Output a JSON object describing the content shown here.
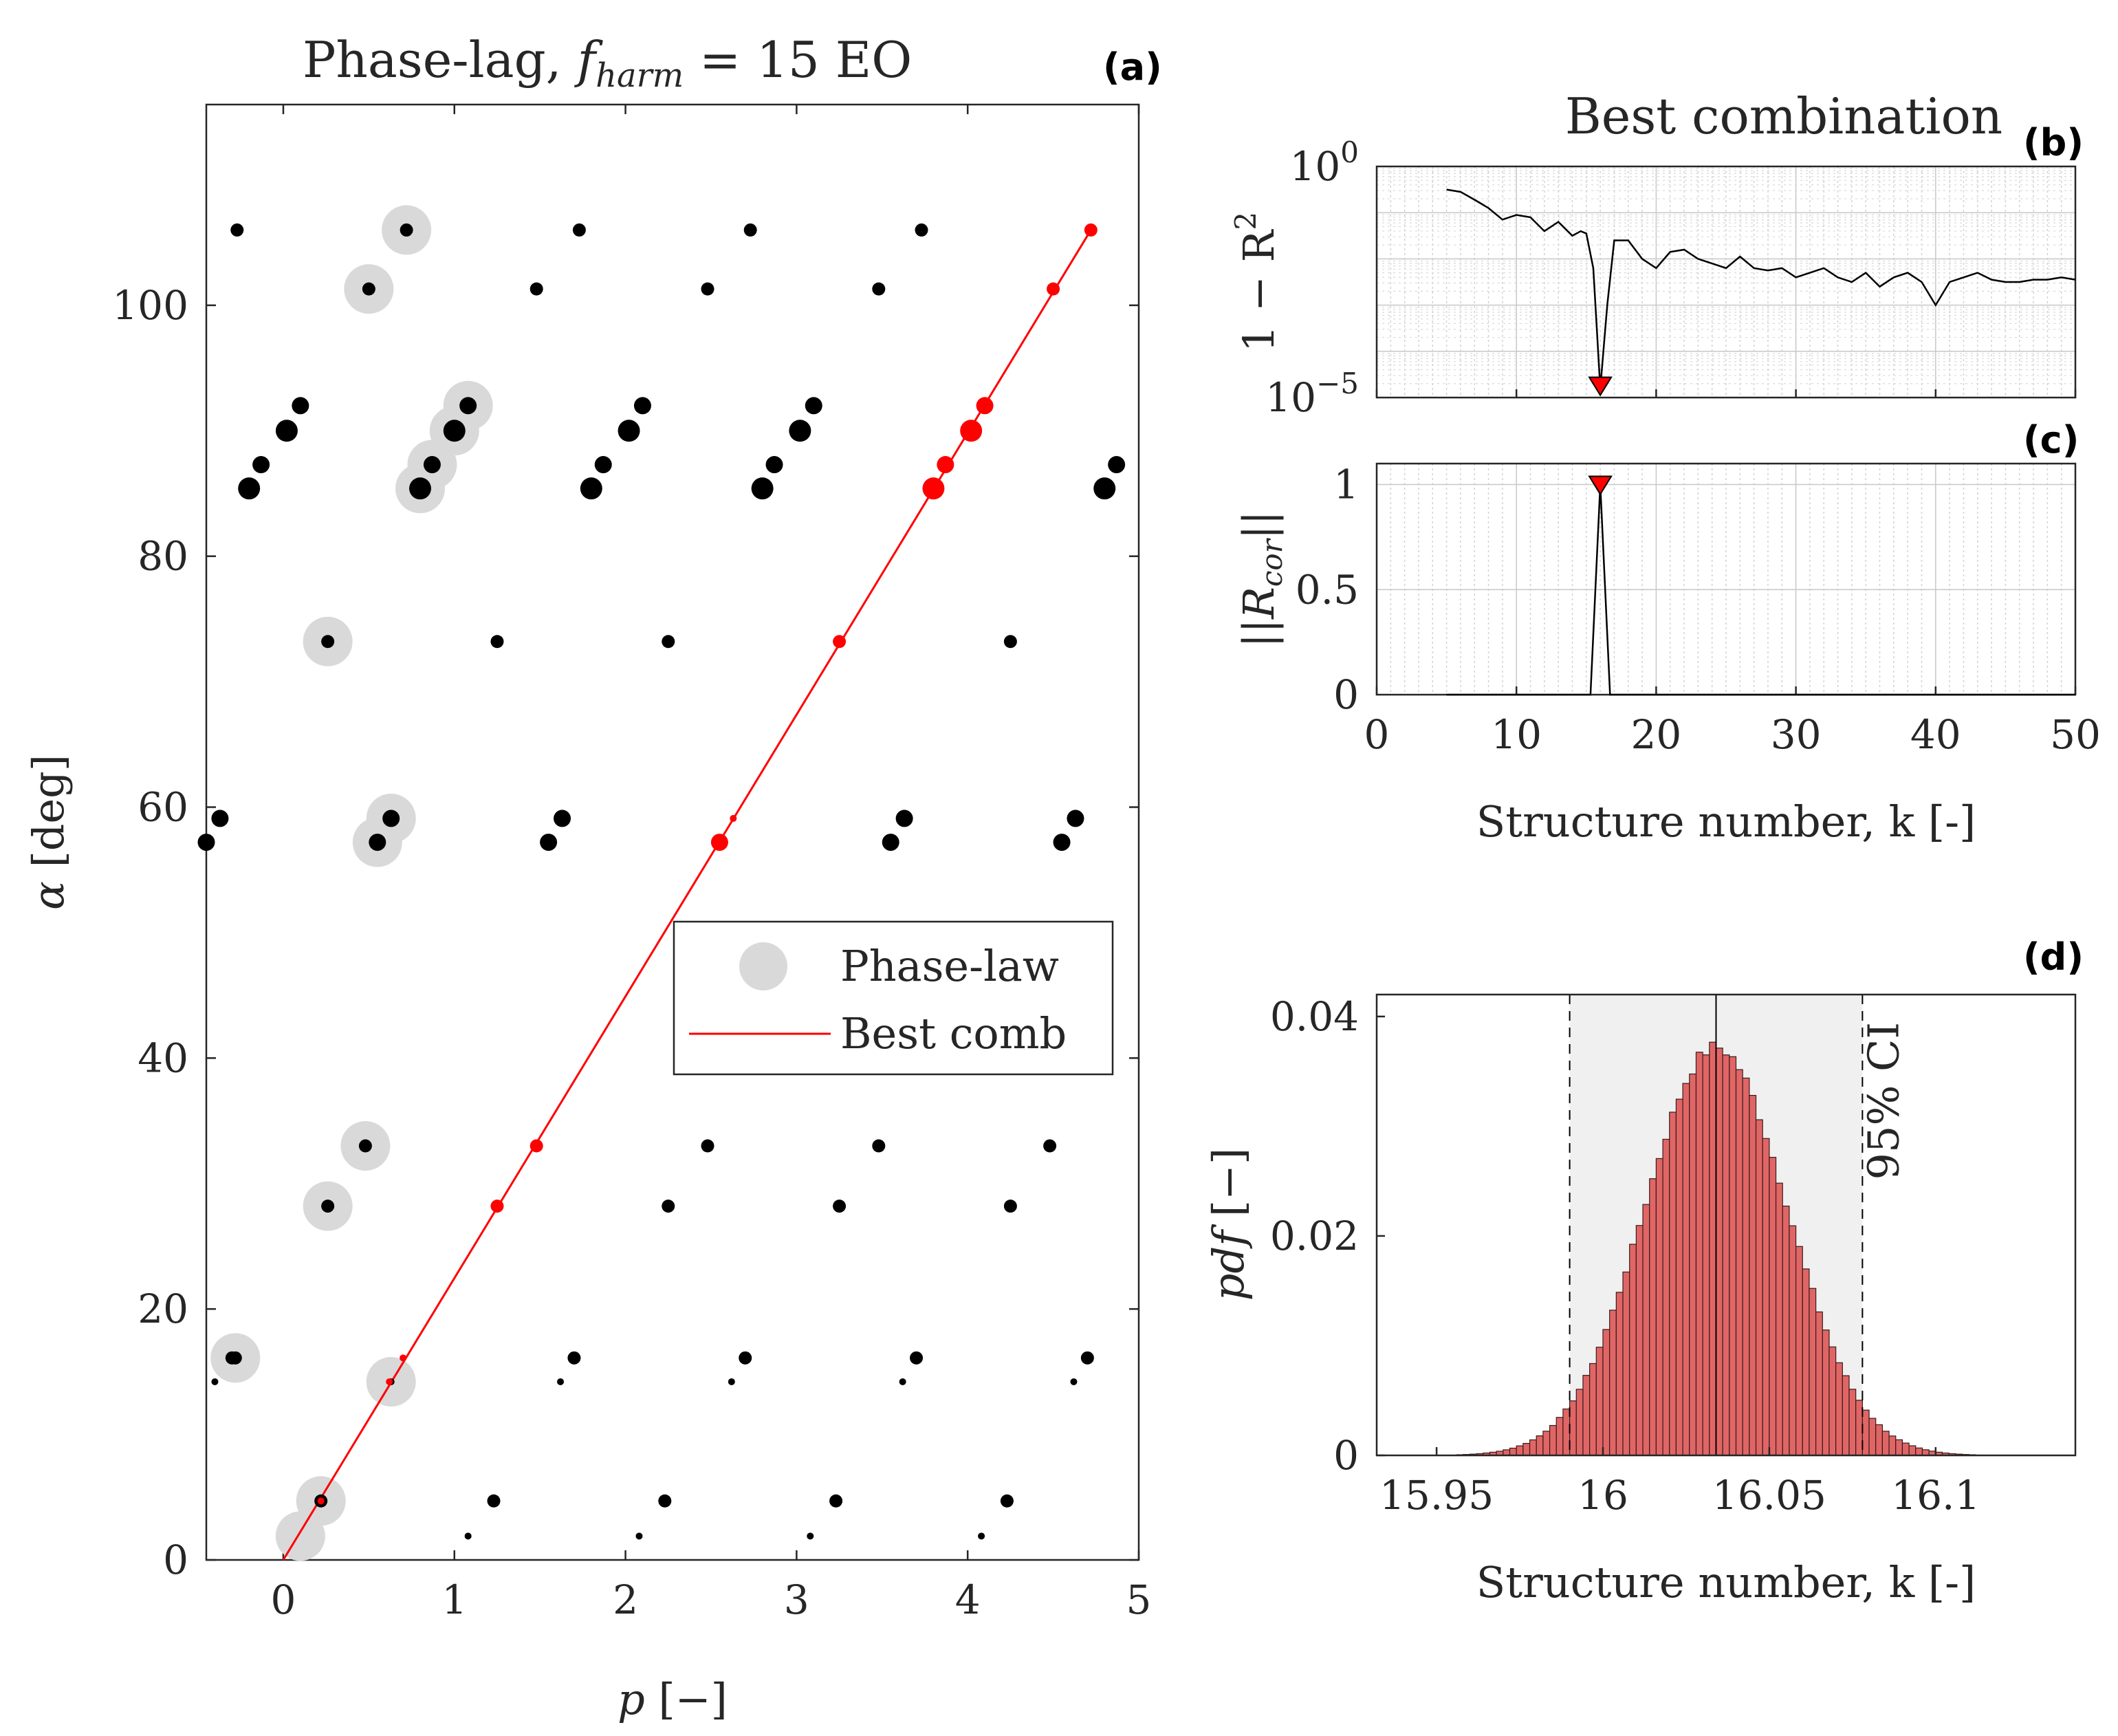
{
  "chart_data": [
    {
      "panel": "(a)",
      "type": "scatter",
      "title_prefix": "Phase-lag, ",
      "title_f": "f",
      "title_sub": "harm",
      "title_suffix": " = 15 EO",
      "xlabel_var": "p",
      "xlabel_unit": " [−]",
      "ylabel_var": "α",
      "ylabel_unit": " [deg]",
      "xlim": [
        -0.45,
        5
      ],
      "ylim": [
        0,
        116
      ],
      "xticks": [
        0,
        1,
        2,
        3,
        4,
        5
      ],
      "yticks": [
        0,
        20,
        40,
        60,
        80,
        100
      ],
      "legend": {
        "position": "center-right",
        "entries": [
          "Phase-law",
          "Best comb"
        ]
      },
      "colors": {
        "points": "#000000",
        "phase_law": "#d9d9d9",
        "best": "#ff0000"
      },
      "point_sets": [
        {
          "size": "small",
          "xs": [
            1.08,
            2.08,
            3.08,
            4.08
          ],
          "y": 1.9
        },
        {
          "size": "small",
          "xs": [
            -0.4,
            1.62,
            2.62,
            3.62,
            4.62
          ],
          "y": 14.2
        },
        {
          "size": "medium",
          "xs": [
            -0.3,
            1.7,
            2.7,
            3.7,
            4.7
          ],
          "y": 16.1
        },
        {
          "size": "medium",
          "xs": [
            1.23,
            2.23,
            3.23,
            4.23
          ],
          "y": 4.7
        },
        {
          "size": "medium",
          "xs": [
            2.25,
            3.25,
            4.25
          ],
          "y": 28.2
        },
        {
          "size": "medium",
          "xs": [
            2.48,
            3.48,
            4.48
          ],
          "y": 33.0
        },
        {
          "size": "medium",
          "xs": [
            1.25,
            2.25,
            4.25
          ],
          "y": 73.2
        },
        {
          "size": "large",
          "xs": [
            -0.45,
            1.55,
            3.55,
            4.55
          ],
          "y": 57.2
        },
        {
          "size": "large",
          "xs": [
            -0.37,
            1.63,
            3.63,
            4.63
          ],
          "y": 59.1
        },
        {
          "size": "xlarge",
          "xs": [
            -0.2,
            1.8,
            2.8,
            4.8
          ],
          "y": 85.4
        },
        {
          "size": "large",
          "xs": [
            -0.13,
            1.87,
            2.87,
            4.87
          ],
          "y": 87.3
        },
        {
          "size": "xlarge",
          "xs": [
            0.02,
            2.02,
            3.02
          ],
          "y": 90.0
        },
        {
          "size": "large",
          "xs": [
            0.1,
            2.1,
            3.1
          ],
          "y": 92.0
        },
        {
          "size": "medium",
          "xs": [
            1.48,
            2.48,
            3.48
          ],
          "y": 101.3
        },
        {
          "size": "medium",
          "xs": [
            -0.27,
            1.73,
            2.73,
            3.73
          ],
          "y": 106.0
        }
      ],
      "phase_law": {
        "x": [
          0.1,
          0.22,
          0.63,
          0.26,
          0.48,
          0.26,
          0.55,
          0.63,
          0.8,
          0.87,
          1.0,
          1.08,
          0.5,
          0.72,
          -0.28
        ],
        "y": [
          1.9,
          4.7,
          14.2,
          28.2,
          33.0,
          73.2,
          57.2,
          59.1,
          85.4,
          87.3,
          90.0,
          92.0,
          101.3,
          106.0,
          16.1
        ]
      },
      "phase_law_marked": {
        "x": [
          0.22,
          0.63,
          0.26,
          0.48,
          0.26,
          0.55,
          0.63,
          0.8,
          0.87,
          1.0,
          1.08,
          0.5,
          0.72,
          -0.28
        ],
        "y": [
          4.7,
          14.2,
          28.2,
          33.0,
          73.2,
          57.2,
          59.1,
          85.4,
          87.3,
          90.0,
          92.0,
          101.3,
          106.0,
          16.1
        ],
        "size": [
          "medium",
          "small",
          "medium",
          "medium",
          "medium",
          "large",
          "large",
          "xlarge",
          "large",
          "xlarge",
          "large",
          "medium",
          "medium",
          "medium"
        ]
      },
      "best_comb": {
        "x": [
          0.0,
          0.22,
          0.62,
          0.7,
          1.25,
          1.48,
          2.55,
          2.63,
          3.25,
          3.8,
          3.87,
          4.02,
          4.1,
          4.5,
          4.72
        ],
        "y": [
          0.0,
          4.7,
          14.2,
          16.1,
          28.2,
          33.0,
          57.2,
          59.1,
          73.2,
          85.4,
          87.3,
          90.0,
          92.0,
          101.3,
          106.0
        ],
        "size": [
          "none",
          "small",
          "small",
          "small",
          "medium",
          "medium",
          "large",
          "small",
          "medium",
          "xlarge",
          "large",
          "xlarge",
          "large",
          "medium",
          "medium"
        ]
      }
    },
    {
      "panel": "(b)",
      "type": "line",
      "title": "Best combination",
      "ylabel_prefix": "1 − R",
      "ylabel_sup": "2",
      "yscale": "log",
      "ylim_exp": [
        -5,
        0
      ],
      "ytick_exps": [
        0,
        -5
      ],
      "ytick_base": "10",
      "xlim": [
        0,
        50
      ],
      "grid": true,
      "x": [
        5,
        6,
        7,
        8,
        9,
        10,
        11,
        12,
        13,
        14,
        14.6,
        15,
        15.5,
        16,
        16.5,
        17,
        18,
        19,
        20,
        21,
        22,
        23,
        24,
        25,
        26,
        27,
        28,
        29,
        30,
        31,
        32,
        33,
        34,
        35,
        36,
        37,
        38,
        39,
        40,
        41,
        42,
        43,
        44,
        45,
        46,
        47,
        48,
        49,
        50
      ],
      "y_log10": [
        -0.5,
        -0.55,
        -0.72,
        -0.9,
        -1.15,
        -1.05,
        -1.1,
        -1.4,
        -1.2,
        -1.5,
        -1.4,
        -1.45,
        -2.2,
        -4.8,
        -3.0,
        -1.6,
        -1.6,
        -2.0,
        -2.2,
        -1.85,
        -1.8,
        -2.0,
        -2.1,
        -2.2,
        -1.95,
        -2.2,
        -2.25,
        -2.2,
        -2.4,
        -2.3,
        -2.2,
        -2.4,
        -2.5,
        -2.3,
        -2.6,
        -2.4,
        -2.3,
        -2.5,
        -3.0,
        -2.5,
        -2.4,
        -2.3,
        -2.45,
        -2.5,
        -2.5,
        -2.45,
        -2.45,
        -2.4,
        -2.45
      ],
      "marker": {
        "x": 16,
        "y_log10": -4.8,
        "color": "#ff0000"
      }
    },
    {
      "panel": "(c)",
      "type": "line",
      "ylabel_outer": "||",
      "ylabel_R": "R",
      "ylabel_sub": "cor",
      "xlabel": "Structure number, k [-]",
      "xlim": [
        0,
        50
      ],
      "ylim": [
        0,
        1.1
      ],
      "xticks": [
        0,
        10,
        20,
        30,
        40,
        50
      ],
      "yticks": [
        0,
        0.5,
        1
      ],
      "grid": true,
      "x": [
        5,
        15.3,
        16,
        16.7,
        50
      ],
      "y": [
        0,
        0,
        1,
        0,
        0
      ],
      "marker": {
        "x": 16,
        "y": 1,
        "color": "#ff0000"
      }
    },
    {
      "panel": "(d)",
      "type": "bar",
      "xlabel": "Structure number, k [-]",
      "ylabel_var": "pdf",
      "ylabel_unit": " [−]",
      "annotation": "95% CI",
      "xlim": [
        15.932,
        16.142
      ],
      "ylim": [
        0,
        0.042
      ],
      "xticks": [
        15.95,
        16,
        16.05,
        16.1
      ],
      "yticks": [
        0,
        0.02,
        0.04
      ],
      "ci": [
        15.99,
        16.078
      ],
      "median": 16.034,
      "bar_color": "#e06666",
      "bins": {
        "start": 15.942,
        "width": 0.002,
        "mean": 16.034,
        "sigma": 0.0215,
        "peak": 0.0372
      }
    }
  ]
}
